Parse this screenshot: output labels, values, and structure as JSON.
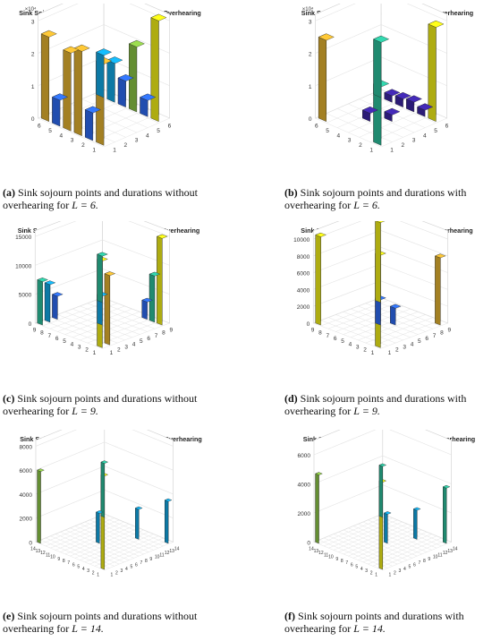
{
  "colors": {
    "bar_palette": [
      "#3e26a8",
      "#2f6efa",
      "#13adeb",
      "#2ec5a0",
      "#8fcb48",
      "#e9b732",
      "#f8f518"
    ],
    "grid": "#e3e3e3",
    "axis": "#333333"
  },
  "chart_data": [
    {
      "id": "a",
      "type": "bar3d",
      "title": "Sink Sojourn Locations and Durations Without Overhearing",
      "z_exponent_label": "×10⁴",
      "z_ticks": [
        "0",
        "1",
        "2",
        "3"
      ],
      "x_ticks": [
        "1",
        "2",
        "3",
        "4",
        "5",
        "6"
      ],
      "y_ticks": [
        "1",
        "2",
        "3",
        "4",
        "5",
        "6"
      ],
      "zlim": [
        0,
        32000
      ],
      "bars": [
        {
          "x": 1,
          "y": 1,
          "value": 26000
        },
        {
          "x": 2,
          "y": 1,
          "value": 8000
        },
        {
          "x": 3,
          "y": 1,
          "value": 24000
        },
        {
          "x": 4,
          "y": 1,
          "value": 26000
        },
        {
          "x": 5,
          "y": 1,
          "value": 8500
        },
        {
          "x": 6,
          "y": 1,
          "value": 25000
        },
        {
          "x": 1,
          "y": 6,
          "value": 13000
        },
        {
          "x": 2,
          "y": 6,
          "value": 12000
        },
        {
          "x": 3,
          "y": 6,
          "value": 8000
        },
        {
          "x": 4,
          "y": 6,
          "value": 20000
        },
        {
          "x": 5,
          "y": 6,
          "value": 5000
        },
        {
          "x": 6,
          "y": 6,
          "value": 31000
        }
      ],
      "caption_label": "(a)",
      "caption_text": "Sink sojourn points and durations without overhearing for",
      "caption_eq": "L = 6."
    },
    {
      "id": "b",
      "type": "bar3d",
      "title": "Sink Sojourn Locations and Durations With Overhearing",
      "z_exponent_label": "×10⁴",
      "z_ticks": [
        "0",
        "1",
        "2",
        "3"
      ],
      "x_ticks": [
        "1",
        "2",
        "3",
        "4",
        "5",
        "6"
      ],
      "y_ticks": [
        "1",
        "2",
        "3",
        "4",
        "5",
        "6"
      ],
      "zlim": [
        0,
        32000
      ],
      "bars": [
        {
          "x": 1,
          "y": 1,
          "value": 25000
        },
        {
          "x": 1,
          "y": 6,
          "value": 17000
        },
        {
          "x": 2,
          "y": 6,
          "value": 2000
        },
        {
          "x": 3,
          "y": 6,
          "value": 2500
        },
        {
          "x": 4,
          "y": 6,
          "value": 3000
        },
        {
          "x": 5,
          "y": 6,
          "value": 2000
        },
        {
          "x": 6,
          "y": 6,
          "value": 29000
        },
        {
          "x": 6,
          "y": 1,
          "value": 18000
        },
        {
          "x": 3,
          "y": 3,
          "value": 2500
        },
        {
          "x": 4,
          "y": 4,
          "value": 2000
        }
      ],
      "caption_label": "(b)",
      "caption_text": "Sink sojourn points and durations with overhearing for",
      "caption_eq": "L = 6."
    },
    {
      "id": "c",
      "type": "bar3d",
      "title": "Sink Sojourn Locations and Durations Without Overhearing",
      "z_exponent_label": "",
      "z_ticks": [
        "0",
        "5000",
        "10000",
        "15000"
      ],
      "x_ticks": [
        "1",
        "2",
        "3",
        "4",
        "5",
        "6",
        "7",
        "8",
        "9"
      ],
      "y_ticks": [
        "1",
        "2",
        "3",
        "4",
        "5",
        "6",
        "7",
        "8",
        "9"
      ],
      "zlim": [
        0,
        16000
      ],
      "bars": [
        {
          "x": 1,
          "y": 1,
          "value": 7500
        },
        {
          "x": 1,
          "y": 2,
          "value": 6500
        },
        {
          "x": 1,
          "y": 3,
          "value": 4000
        },
        {
          "x": 1,
          "y": 9,
          "value": 8000
        },
        {
          "x": 5,
          "y": 5,
          "value": 5000
        },
        {
          "x": 9,
          "y": 1,
          "value": 15000
        },
        {
          "x": 9,
          "y": 2,
          "value": 12000
        },
        {
          "x": 9,
          "y": 9,
          "value": 15000
        },
        {
          "x": 8,
          "y": 9,
          "value": 8000
        },
        {
          "x": 7,
          "y": 9,
          "value": 3000
        }
      ],
      "caption_label": "(c)",
      "caption_text": "Sink sojourn points and durations without overhearing for",
      "caption_eq": "L = 9."
    },
    {
      "id": "d",
      "type": "bar3d",
      "title": "Sink Sojourn Locations and Durations With Overhearing",
      "z_exponent_label": "",
      "z_ticks": [
        "0",
        "2000",
        "4000",
        "6000",
        "8000",
        "10000"
      ],
      "x_ticks": [
        "1",
        "2",
        "3",
        "4",
        "5",
        "6",
        "7",
        "8",
        "9"
      ],
      "y_ticks": [
        "1",
        "2",
        "3",
        "4",
        "5",
        "6",
        "7",
        "8",
        "9"
      ],
      "zlim": [
        0,
        11000
      ],
      "bars": [
        {
          "x": 1,
          "y": 1,
          "value": 10500
        },
        {
          "x": 1,
          "y": 9,
          "value": 9500
        },
        {
          "x": 9,
          "y": 1,
          "value": 11000
        },
        {
          "x": 9,
          "y": 9,
          "value": 8000
        },
        {
          "x": 5,
          "y": 5,
          "value": 3000
        },
        {
          "x": 6,
          "y": 6,
          "value": 2000
        }
      ],
      "caption_label": "(d)",
      "caption_text": "Sink sojourn points and durations with overhearing for",
      "caption_eq": "L = 9."
    },
    {
      "id": "e",
      "type": "bar3d",
      "title": "Sink Sojourn Locations and Durations Without Overhearing",
      "z_exponent_label": "",
      "z_ticks": [
        "0",
        "2000",
        "4000",
        "6000",
        "8000"
      ],
      "x_ticks": [
        "1",
        "2",
        "3",
        "4",
        "5",
        "6",
        "7",
        "8",
        "9",
        "10",
        "11",
        "12",
        "13",
        "14"
      ],
      "y_ticks": [
        "1",
        "2",
        "3",
        "4",
        "5",
        "6",
        "7",
        "8",
        "9",
        "10",
        "11",
        "12",
        "13",
        "14"
      ],
      "zlim": [
        0,
        8500
      ],
      "bars": [
        {
          "x": 1,
          "y": 1,
          "value": 6000
        },
        {
          "x": 1,
          "y": 14,
          "value": 4500
        },
        {
          "x": 14,
          "y": 1,
          "value": 7800
        },
        {
          "x": 14,
          "y": 14,
          "value": 3500
        },
        {
          "x": 7,
          "y": 7,
          "value": 2500
        },
        {
          "x": 10,
          "y": 12,
          "value": 2500
        }
      ],
      "caption_label": "(e)",
      "caption_text": "Sink sojourn points and durations without overhearing for",
      "caption_eq": "L = 14."
    },
    {
      "id": "f",
      "type": "bar3d",
      "title": "Sink Sojourn Locations and Durations With Overhearing",
      "z_exponent_label": "",
      "z_ticks": [
        "0",
        "2000",
        "4000",
        "6000"
      ],
      "x_ticks": [
        "1",
        "2",
        "3",
        "4",
        "5",
        "6",
        "7",
        "8",
        "9",
        "10",
        "11",
        "12",
        "13",
        "14"
      ],
      "y_ticks": [
        "1",
        "2",
        "3",
        "4",
        "5",
        "6",
        "7",
        "8",
        "9",
        "10",
        "11",
        "12",
        "13",
        "14"
      ],
      "zlim": [
        0,
        7000
      ],
      "bars": [
        {
          "x": 1,
          "y": 1,
          "value": 4700
        },
        {
          "x": 1,
          "y": 14,
          "value": 3500
        },
        {
          "x": 14,
          "y": 1,
          "value": 6000
        },
        {
          "x": 14,
          "y": 14,
          "value": 3800
        },
        {
          "x": 8,
          "y": 8,
          "value": 2000
        },
        {
          "x": 10,
          "y": 12,
          "value": 2000
        }
      ],
      "caption_label": "(f)",
      "caption_text": "Sink sojourn points and durations with overhearing for",
      "caption_eq": "L = 14."
    }
  ]
}
